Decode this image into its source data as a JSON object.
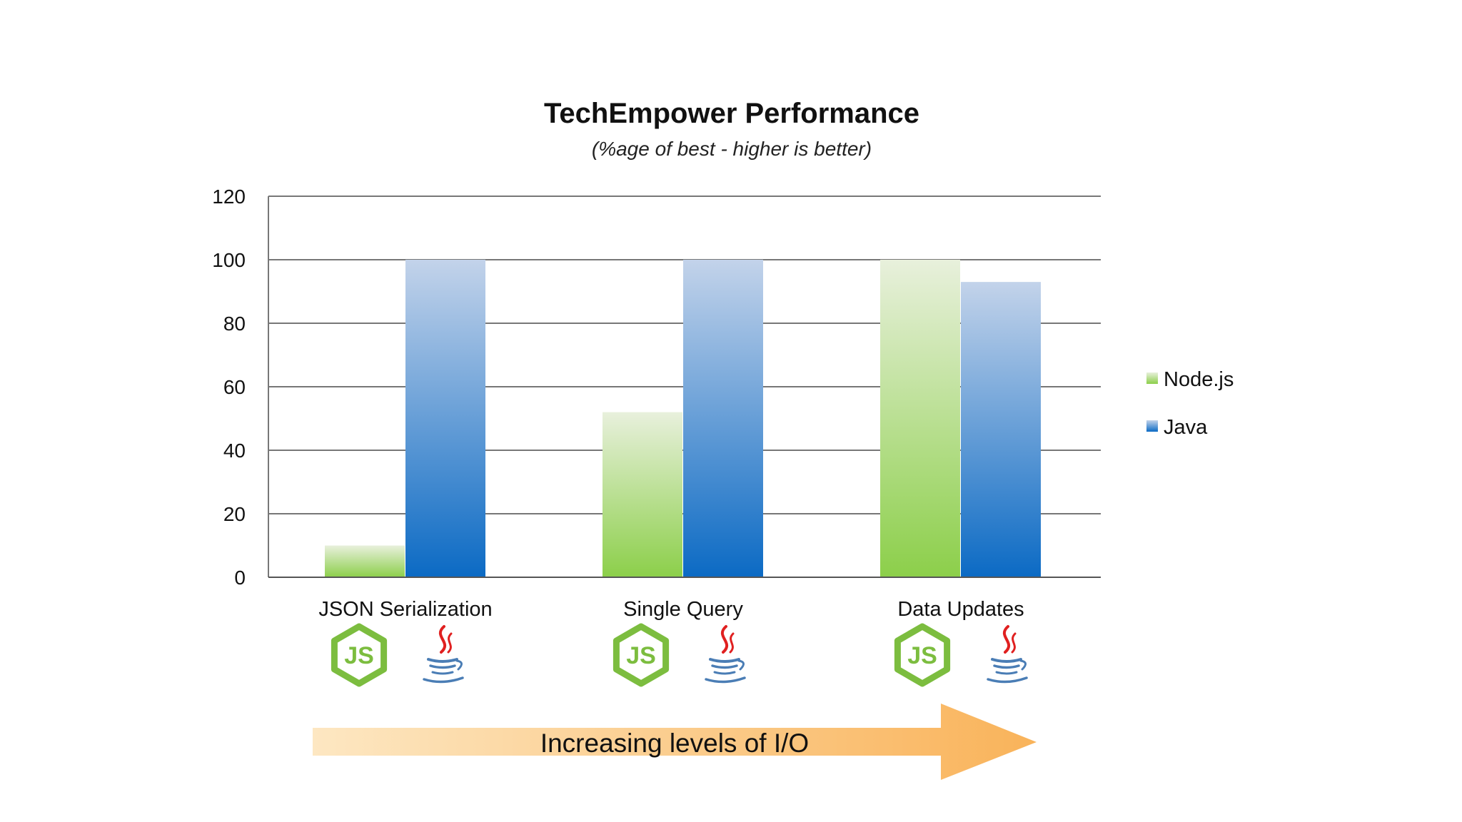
{
  "chart_data": {
    "type": "bar",
    "title": "TechEmpower Performance",
    "subtitle": "(%age of best - higher is better)",
    "categories": [
      "JSON Serialization",
      "Single Query",
      "Data Updates"
    ],
    "series": [
      {
        "name": "Node.js",
        "values": [
          10,
          52,
          100
        ],
        "color": "#8fcf4f"
      },
      {
        "name": "Java",
        "values": [
          100,
          100,
          93
        ],
        "color": "#1f78c8"
      }
    ],
    "ylim": [
      0,
      120
    ],
    "yticks": [
      "0",
      "20",
      "40",
      "60",
      "80",
      "100",
      "120"
    ],
    "grid": true,
    "legend_position": "right"
  },
  "icons": {
    "nodejs": {
      "name": "nodejs-logo-icon",
      "text": "JS",
      "color": "#7cbd3f"
    },
    "java": {
      "name": "java-logo-icon",
      "cup_color": "#4a7db5",
      "steam_color": "#e02020"
    }
  },
  "arrow": {
    "label": "Increasing levels of I/O",
    "color_start": "#fde7c2",
    "color_end": "#f9b35a"
  }
}
